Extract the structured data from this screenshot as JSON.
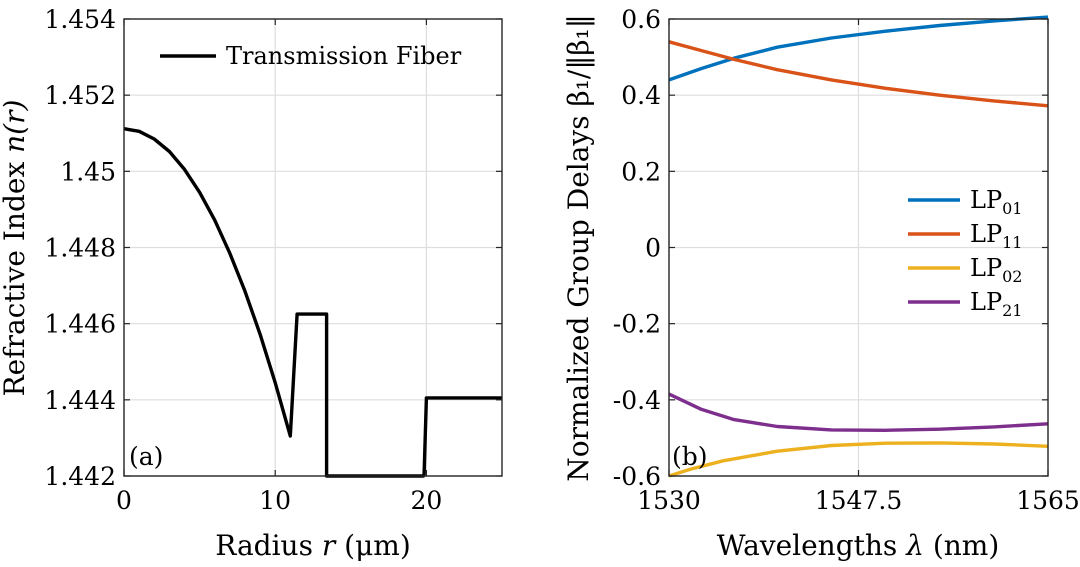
{
  "chart_data": [
    {
      "type": "line",
      "panel_label": "(a)",
      "xlabel_prefix": "Radius ",
      "xlabel_var": "r",
      "xlabel_suffix": " (μm)",
      "ylabel_prefix": "Refractive Index ",
      "ylabel_var": "n(r)",
      "xlim": [
        0,
        25
      ],
      "ylim": [
        1.442,
        1.454
      ],
      "xticks": [
        0,
        10,
        20
      ],
      "xtick_labels": [
        "0",
        "10",
        "20"
      ],
      "yticks": [
        1.442,
        1.444,
        1.446,
        1.448,
        1.45,
        1.452,
        1.454
      ],
      "ytick_labels": [
        "1.442",
        "1.444",
        "1.446",
        "1.448",
        "1.45",
        "1.452",
        "1.454"
      ],
      "grid": true,
      "legend_position": "top-right",
      "series": [
        {
          "name": "Transmission Fiber",
          "color": "#000000",
          "x": [
            0,
            1,
            2,
            3,
            4,
            5,
            6,
            7,
            8,
            9,
            10,
            11,
            11.45,
            13.4,
            13.4,
            13.5,
            14,
            19.8,
            19.85,
            20.0,
            20.1,
            25
          ],
          "y": [
            1.45112,
            1.45105,
            1.45085,
            1.45052,
            1.45005,
            1.44945,
            1.44872,
            1.44785,
            1.44685,
            1.44572,
            1.44445,
            1.44305,
            1.44625,
            1.44625,
            1.442,
            1.442,
            1.442,
            1.442,
            1.44205,
            1.44405,
            1.44405,
            1.44405
          ]
        }
      ]
    },
    {
      "type": "line",
      "panel_label": "(b)",
      "xlabel_prefix": "Wavelengths ",
      "xlabel_var": "λ",
      "xlabel_suffix": " (nm)",
      "ylabel_text": "Normalized Group Delays β₁/‖β₁‖",
      "xlim": [
        1530,
        1565
      ],
      "ylim": [
        -0.6,
        0.6
      ],
      "xticks": [
        1530,
        1547.5,
        1565
      ],
      "xtick_labels": [
        "1530",
        "1547.5",
        "1565"
      ],
      "yticks": [
        -0.6,
        -0.4,
        -0.2,
        0,
        0.2,
        0.4,
        0.6
      ],
      "ytick_labels": [
        "-0.6",
        "-0.4",
        "-0.2",
        "0",
        "0.2",
        "0.4",
        "0.6"
      ],
      "grid": true,
      "legend_position": "middle-right",
      "series": [
        {
          "name": "LP",
          "sub": "01",
          "color": "#0072BD",
          "x": [
            1530,
            1533,
            1536,
            1540,
            1545,
            1550,
            1555,
            1560,
            1565
          ],
          "y": [
            0.44,
            0.47,
            0.497,
            0.526,
            0.55,
            0.568,
            0.583,
            0.595,
            0.605
          ]
        },
        {
          "name": "LP",
          "sub": "11",
          "color": "#D95319",
          "x": [
            1530,
            1533,
            1536,
            1540,
            1545,
            1550,
            1555,
            1560,
            1565
          ],
          "y": [
            0.54,
            0.517,
            0.494,
            0.467,
            0.44,
            0.418,
            0.4,
            0.385,
            0.372
          ]
        },
        {
          "name": "LP",
          "sub": "02",
          "color": "#EDB120",
          "x": [
            1530,
            1532,
            1535,
            1540,
            1545,
            1550,
            1555,
            1560,
            1565
          ],
          "y": [
            -0.6,
            -0.582,
            -0.56,
            -0.535,
            -0.52,
            -0.514,
            -0.513,
            -0.516,
            -0.522
          ]
        },
        {
          "name": "LP",
          "sub": "21",
          "color": "#7E2F8E",
          "x": [
            1530,
            1533,
            1536,
            1540,
            1545,
            1550,
            1555,
            1560,
            1565
          ],
          "y": [
            -0.385,
            -0.425,
            -0.452,
            -0.47,
            -0.479,
            -0.48,
            -0.477,
            -0.471,
            -0.463
          ]
        }
      ]
    }
  ]
}
